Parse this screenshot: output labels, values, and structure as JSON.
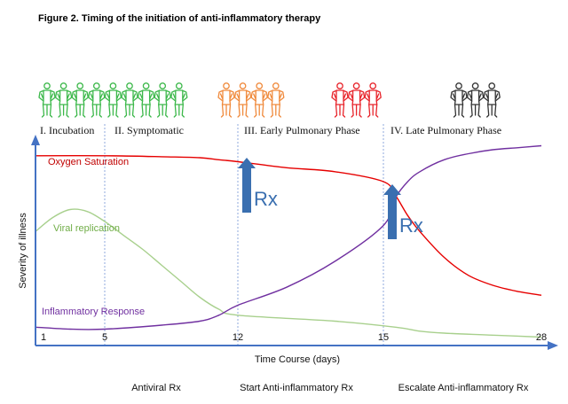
{
  "title": "Figure 2.  Timing of the initiation of anti-inflammatory therapy",
  "phases": [
    {
      "label": "I. Incubation"
    },
    {
      "label": "II. Symptomatic"
    },
    {
      "label": "III. Early Pulmonary Phase"
    },
    {
      "label": "IV. Late Pulmonary Phase"
    }
  ],
  "figure_groups": [
    {
      "color": "#3cb84a",
      "count": 9
    },
    {
      "color": "#f08a3c",
      "count": 4
    },
    {
      "color": "#e8232a",
      "count": 3
    },
    {
      "color": "#333333",
      "count": 3
    }
  ],
  "colors": {
    "oxygen": "#e60000",
    "viral": "#a8d08d",
    "viral_label": "#70ad47",
    "inflammatory": "#7030a0",
    "axis": "#4472c4",
    "arrow": "#3a6fb0",
    "divider": "#8faadc"
  },
  "rx_markers": [
    {
      "label": "Rx",
      "x": 12
    },
    {
      "label": "Rx",
      "x": 15
    }
  ],
  "treatments": [
    {
      "label": "Antiviral Rx"
    },
    {
      "label": "Start Anti-inflammatory Rx"
    },
    {
      "label": "Escalate Anti-inflammatory Rx"
    }
  ],
  "chart_data": {
    "type": "line",
    "xlabel": "Time Course (days)",
    "ylabel": "Severity of illness",
    "x_ticks": [
      1,
      5,
      12,
      15,
      28
    ],
    "dividers": [
      5,
      12,
      15
    ],
    "grid": false,
    "series": [
      {
        "name": "Oxygen Saturation",
        "color": "#e60000",
        "x": [
          1,
          5,
          8,
          10,
          11,
          12,
          13,
          14,
          15,
          16,
          17,
          18,
          20,
          22,
          24,
          26,
          28
        ],
        "y": [
          0.93,
          0.93,
          0.925,
          0.92,
          0.91,
          0.9,
          0.87,
          0.85,
          0.8,
          0.73,
          0.63,
          0.55,
          0.42,
          0.33,
          0.28,
          0.25,
          0.23
        ]
      },
      {
        "name": "Viral replication",
        "color": "#a8d08d",
        "x": [
          1,
          2,
          3,
          4,
          5,
          6,
          7,
          8,
          9,
          10,
          11,
          12,
          14,
          16,
          18,
          20,
          24,
          28
        ],
        "y": [
          0.55,
          0.62,
          0.66,
          0.65,
          0.6,
          0.53,
          0.46,
          0.38,
          0.3,
          0.22,
          0.16,
          0.13,
          0.1,
          0.07,
          0.05,
          0.04,
          0.03,
          0.02
        ]
      },
      {
        "name": "Inflammatory Response",
        "color": "#7030a0",
        "x": [
          1,
          3,
          5,
          8,
          10,
          11,
          12,
          13,
          14,
          15,
          16,
          17,
          18,
          20,
          22,
          24,
          26,
          28
        ],
        "y": [
          0.07,
          0.06,
          0.06,
          0.08,
          0.1,
          0.13,
          0.18,
          0.27,
          0.4,
          0.58,
          0.72,
          0.8,
          0.85,
          0.91,
          0.94,
          0.96,
          0.97,
          0.98
        ]
      }
    ]
  }
}
